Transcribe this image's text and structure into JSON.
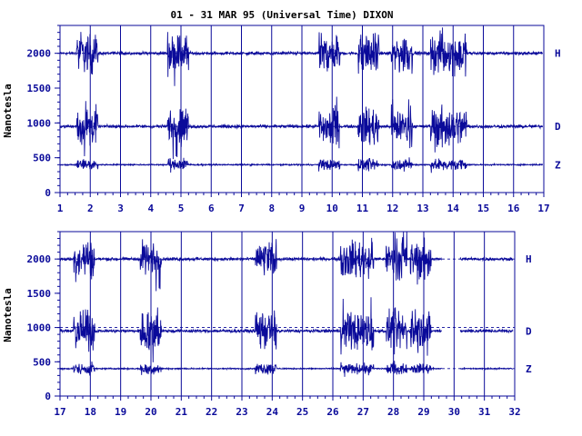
{
  "title": "01 - 31 MAR 95 (Universal Time) DIXON",
  "ylabel": "Nanotesla",
  "color": "#0a0a9a",
  "chart_data": [
    {
      "type": "line",
      "panel": "top",
      "x_ticks": [
        "1",
        "2",
        "3",
        "4",
        "5",
        "6",
        "7",
        "8",
        "9",
        "10",
        "11",
        "12",
        "13",
        "14",
        "15",
        "16",
        "17"
      ],
      "xlim": [
        1,
        17
      ],
      "y_ticks": [
        "0",
        "500",
        "1000",
        "1500",
        "2000"
      ],
      "ylim": [
        0,
        2400
      ],
      "grid": "vertical lines at each day",
      "reference_lines": [
        400,
        950,
        2000
      ],
      "series": [
        {
          "name": "H",
          "baseline": 2000,
          "disturbed_days": [
            1.9,
            4.9,
            9.9,
            11.2,
            12.3,
            13.6,
            14.1
          ]
        },
        {
          "name": "D",
          "baseline": 950,
          "disturbed_days": [
            1.9,
            4.9,
            9.9,
            11.2,
            12.3,
            13.6,
            14.1
          ]
        },
        {
          "name": "Z",
          "baseline": 400,
          "disturbed_days": [
            1.9,
            4.9,
            9.9,
            11.2,
            12.3,
            13.6,
            14.1
          ]
        }
      ]
    },
    {
      "type": "line",
      "panel": "bottom",
      "x_ticks": [
        "17",
        "18",
        "19",
        "20",
        "21",
        "22",
        "23",
        "24",
        "25",
        "26",
        "27",
        "28",
        "29",
        "30",
        "31",
        "32"
      ],
      "xlim": [
        17,
        32
      ],
      "y_ticks": [
        "0",
        "500",
        "1000",
        "1500",
        "2000"
      ],
      "ylim": [
        0,
        2400
      ],
      "grid": "vertical lines at each day",
      "reference_lines": [
        400,
        1000,
        2000
      ],
      "series": [
        {
          "name": "H",
          "baseline": 2000,
          "disturbed_days": [
            17.8,
            20.0,
            23.8,
            26.6,
            27.0,
            28.1,
            28.9
          ]
        },
        {
          "name": "D",
          "baseline": 950,
          "disturbed_days": [
            17.8,
            20.0,
            23.8,
            26.6,
            27.0,
            28.1,
            28.9
          ]
        },
        {
          "name": "Z",
          "baseline": 400,
          "disturbed_days": [
            17.8,
            20.0,
            23.8,
            26.6,
            27.0,
            28.1,
            28.9
          ]
        }
      ],
      "data_gaps": [
        [
          29.6,
          30.2
        ]
      ]
    }
  ]
}
